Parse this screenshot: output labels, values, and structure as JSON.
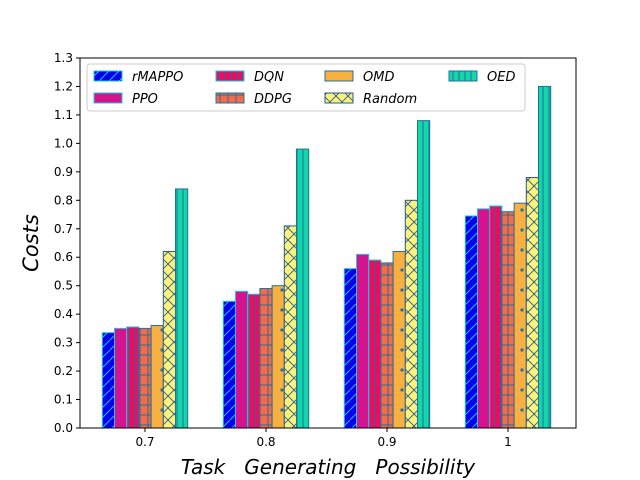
{
  "chart_data": {
    "type": "bar",
    "title": "",
    "xlabel": "Task   Generating   Possibility",
    "ylabel": "Costs",
    "ylim": [
      0,
      1.3
    ],
    "yticks": [
      "0.0",
      "0.1",
      "0.2",
      "0.3",
      "0.4",
      "0.5",
      "0.6",
      "0.7",
      "0.8",
      "0.9",
      "1.0",
      "1.1",
      "1.2",
      "1.3"
    ],
    "categories": [
      "0.7",
      "0.8",
      "0.9",
      "1"
    ],
    "legend_position": "top-left",
    "series": [
      {
        "name": "rMAPPO",
        "color": "#0000ee",
        "edge": "#1fc7e0",
        "hatch": "diag-forward",
        "values": [
          0.335,
          0.445,
          0.56,
          0.745
        ]
      },
      {
        "name": "PPO",
        "color": "#d4138f",
        "edge": "#1fc7e0",
        "hatch": "none",
        "values": [
          0.35,
          0.48,
          0.61,
          0.77
        ]
      },
      {
        "name": "DQN",
        "color": "#ee0b60",
        "edge": "#1fc7e0",
        "hatch": "vertical",
        "values": [
          0.355,
          0.47,
          0.59,
          0.78
        ]
      },
      {
        "name": "DDPG",
        "color": "#f56b48",
        "edge": "#2070a0",
        "hatch": "grid",
        "values": [
          0.35,
          0.49,
          0.58,
          0.76
        ]
      },
      {
        "name": "OMD",
        "color": "#f8b040",
        "edge": "#2070a0",
        "hatch": "dots",
        "values": [
          0.36,
          0.5,
          0.62,
          0.79
        ]
      },
      {
        "name": "Random",
        "color": "#fbf27c",
        "edge": "#2a5a8a",
        "hatch": "cross",
        "values": [
          0.62,
          0.71,
          0.8,
          0.88
        ]
      },
      {
        "name": "OED",
        "color": "#14d6a8",
        "edge": "#2070a0",
        "hatch": "vertical",
        "values": [
          0.84,
          0.98,
          1.08,
          1.2
        ]
      }
    ]
  }
}
